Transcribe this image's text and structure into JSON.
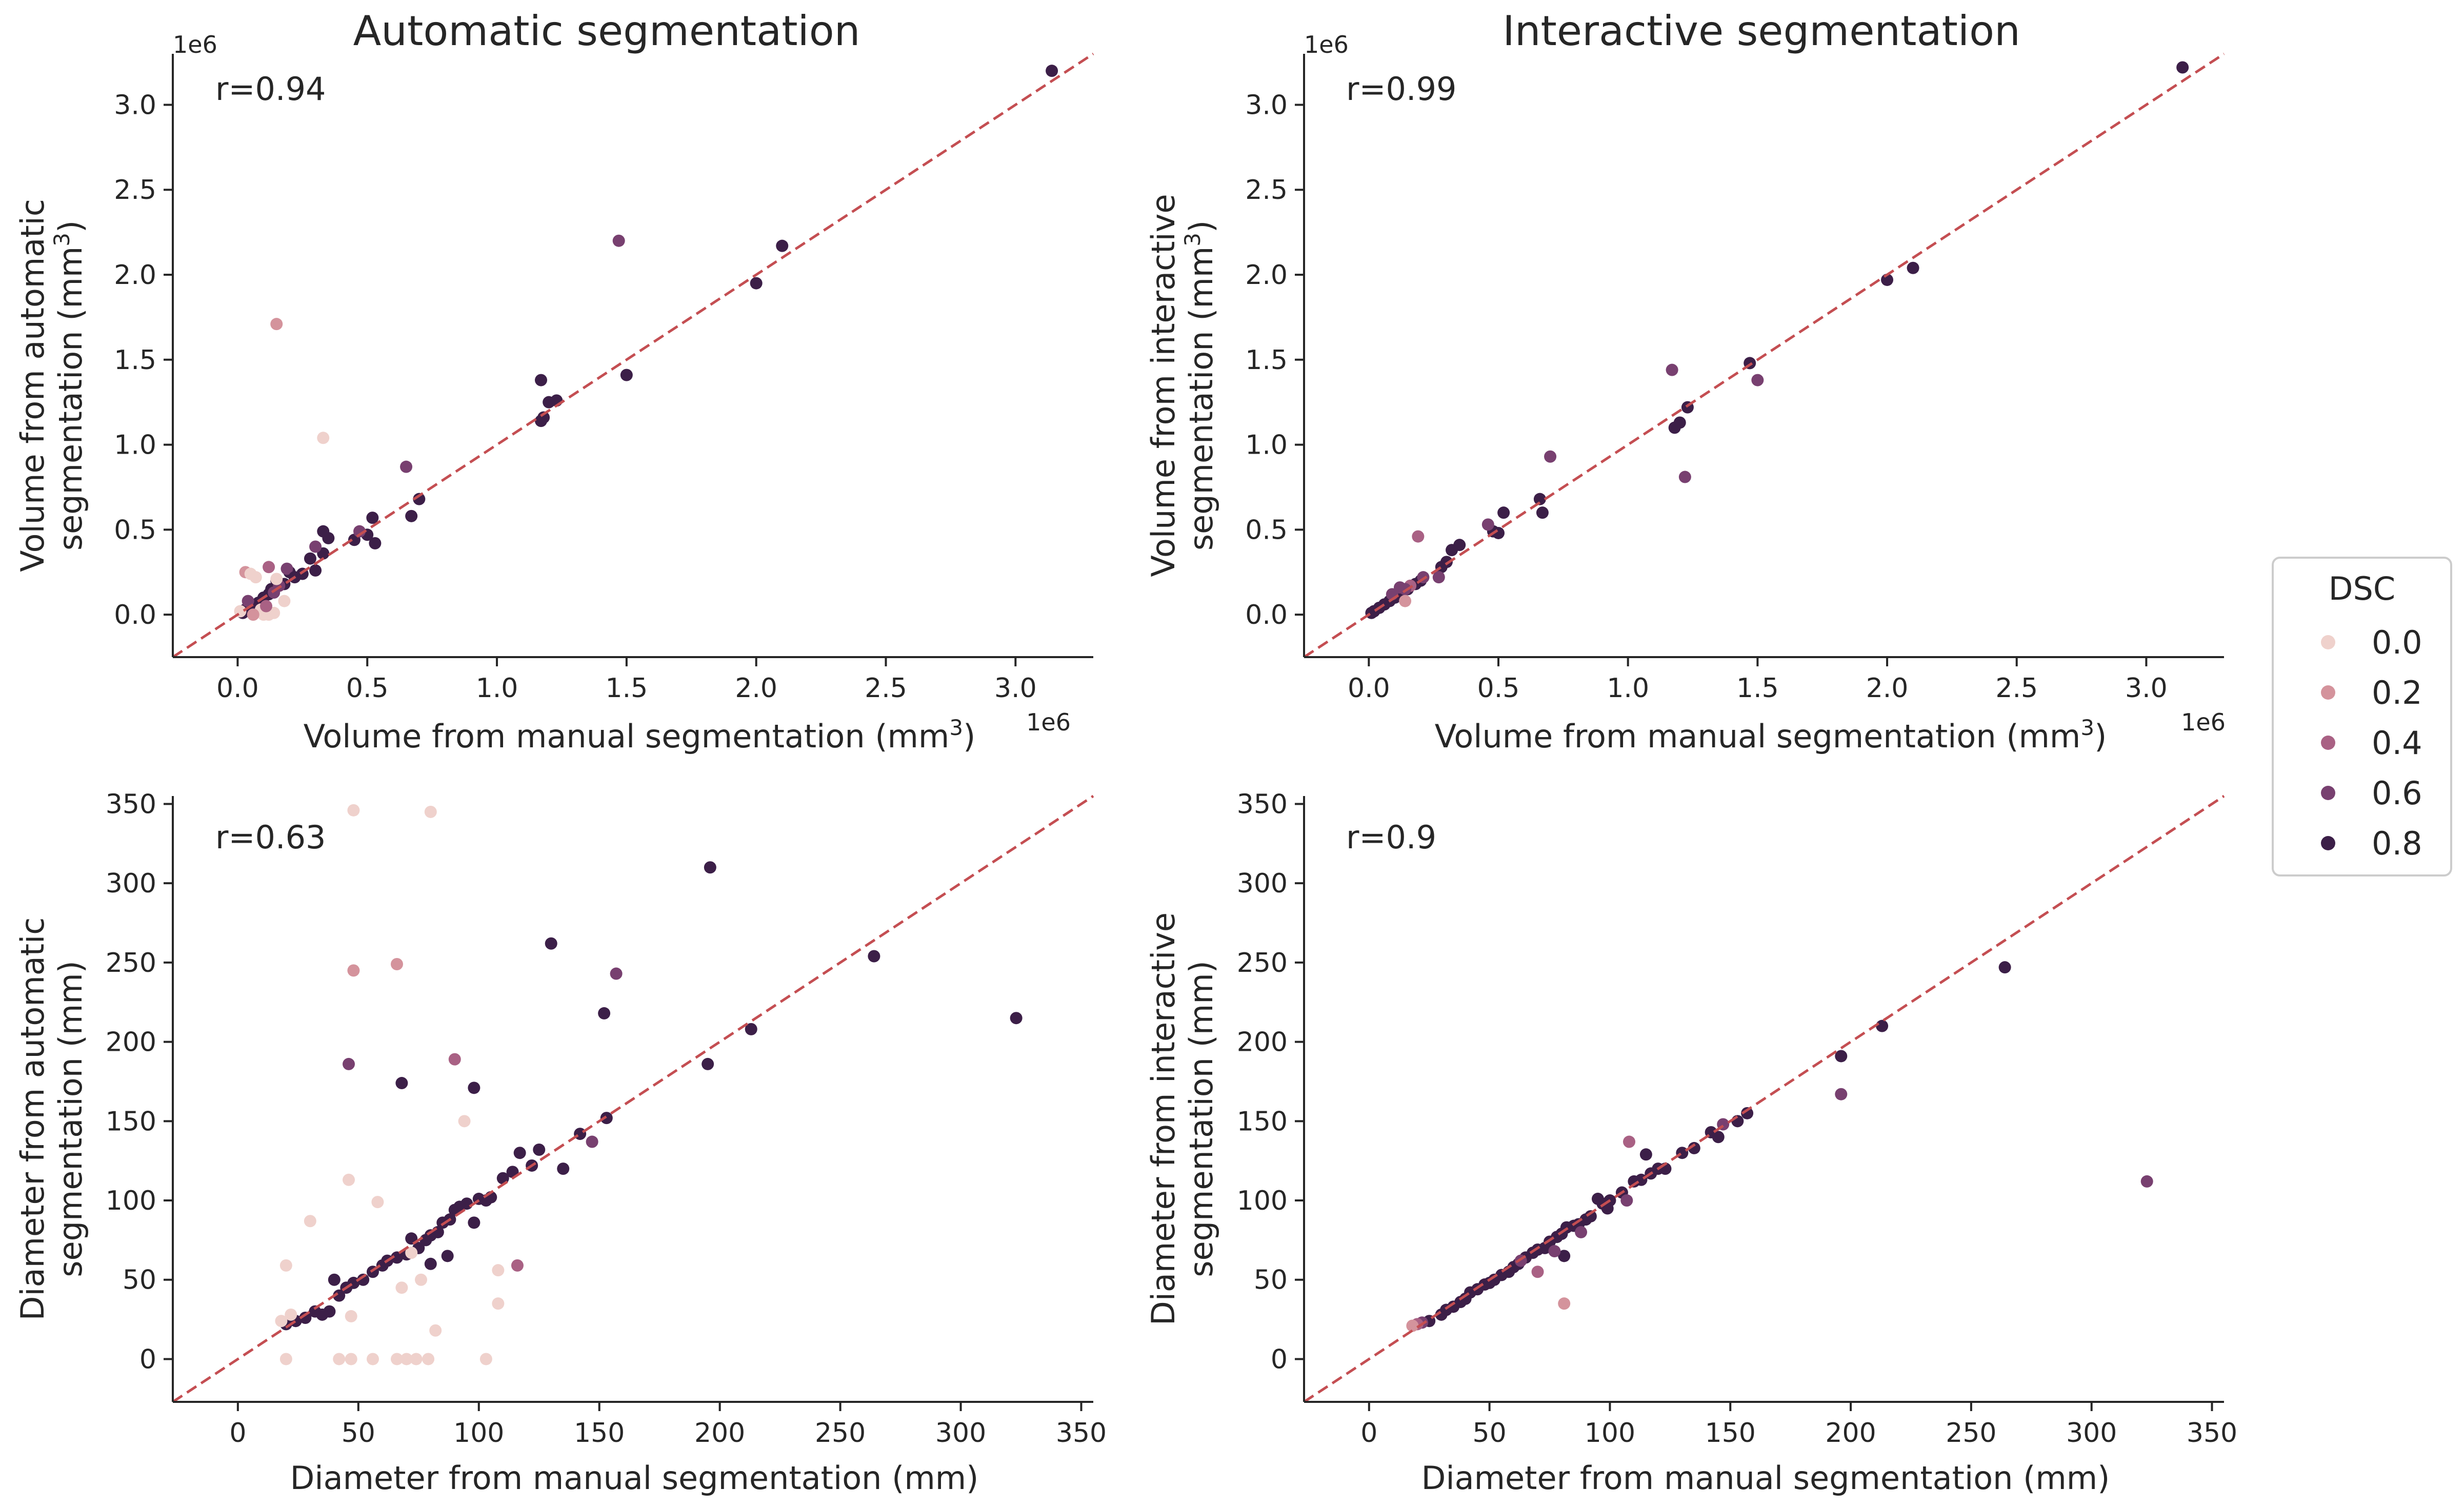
{
  "figure": {
    "legend": {
      "title": "DSC",
      "entries": [
        "0.0",
        "0.2",
        "0.4",
        "0.6",
        "0.8"
      ],
      "colors": [
        "#efd1cc",
        "#d4939c",
        "#a96184",
        "#784070",
        "#3c1f48"
      ],
      "placement": "right-center"
    },
    "identity_line_color": "#c44e52"
  },
  "chart_data": [
    {
      "type": "scatter",
      "title": "Automatic segmentation",
      "annotation": "r=0.94",
      "xlabel": "Volume from manual segmentation (mm",
      "xlabel_sup": "3",
      "xlabel_end": ")",
      "ylabel_line1": "Volume from automatic",
      "ylabel_line2": "segmentation (mm",
      "ylabel_sup": "3",
      "ylabel_end": ")",
      "x_offset_label": "1e6",
      "y_offset_label": "1e6",
      "xlim": [
        -0.25,
        3.3
      ],
      "ylim": [
        -0.25,
        3.3
      ],
      "xticks": [
        0.0,
        0.5,
        1.0,
        1.5,
        2.0,
        2.5,
        3.0
      ],
      "yticks": [
        0.0,
        0.5,
        1.0,
        1.5,
        2.0,
        2.5,
        3.0
      ],
      "xtick_labels": [
        "0.0",
        "0.5",
        "1.0",
        "1.5",
        "2.0",
        "2.5",
        "3.0"
      ],
      "ytick_labels": [
        "0.0",
        "0.5",
        "1.0",
        "1.5",
        "2.0",
        "2.5",
        "3.0"
      ],
      "points": [
        [
          3.14,
          3.2,
          4
        ],
        [
          2.1,
          2.17,
          4
        ],
        [
          2.0,
          1.95,
          4
        ],
        [
          1.47,
          2.2,
          3
        ],
        [
          1.5,
          1.41,
          4
        ],
        [
          1.23,
          1.26,
          4
        ],
        [
          1.2,
          1.25,
          4
        ],
        [
          1.17,
          1.38,
          4
        ],
        [
          1.17,
          1.14,
          4
        ],
        [
          1.18,
          1.16,
          4
        ],
        [
          0.65,
          0.87,
          3
        ],
        [
          0.7,
          0.68,
          4
        ],
        [
          0.67,
          0.58,
          4
        ],
        [
          0.52,
          0.57,
          4
        ],
        [
          0.5,
          0.47,
          4
        ],
        [
          0.45,
          0.44,
          4
        ],
        [
          0.53,
          0.42,
          4
        ],
        [
          0.47,
          0.49,
          3
        ],
        [
          0.33,
          0.49,
          4
        ],
        [
          0.35,
          0.45,
          4
        ],
        [
          0.33,
          0.36,
          4
        ],
        [
          0.3,
          0.4,
          3
        ],
        [
          0.28,
          0.33,
          4
        ],
        [
          0.3,
          0.26,
          4
        ],
        [
          0.25,
          0.24,
          4
        ],
        [
          0.2,
          0.25,
          4
        ],
        [
          0.18,
          0.18,
          4
        ],
        [
          0.15,
          0.2,
          4
        ],
        [
          0.13,
          0.15,
          4
        ],
        [
          0.12,
          0.12,
          4
        ],
        [
          0.1,
          0.1,
          4
        ],
        [
          0.08,
          0.07,
          4
        ],
        [
          0.05,
          0.05,
          4
        ],
        [
          0.03,
          0.03,
          4
        ],
        [
          0.02,
          0.01,
          4
        ],
        [
          0.06,
          0.04,
          4
        ],
        [
          0.16,
          0.17,
          3
        ],
        [
          0.19,
          0.27,
          3
        ],
        [
          0.12,
          0.28,
          2
        ],
        [
          0.14,
          0.13,
          3
        ],
        [
          0.22,
          0.22,
          4
        ],
        [
          0.04,
          0.08,
          3
        ],
        [
          0.15,
          1.71,
          1
        ],
        [
          0.33,
          1.04,
          0
        ],
        [
          0.03,
          0.25,
          1
        ],
        [
          0.05,
          0.24,
          0
        ],
        [
          0.07,
          0.22,
          0
        ],
        [
          0.15,
          0.21,
          0
        ],
        [
          0.18,
          0.08,
          0
        ],
        [
          0.12,
          0.0,
          0
        ],
        [
          0.1,
          0.0,
          0
        ],
        [
          0.14,
          0.01,
          0
        ],
        [
          0.09,
          0.03,
          0
        ],
        [
          0.01,
          0.02,
          0
        ],
        [
          0.06,
          0.0,
          1
        ],
        [
          0.11,
          0.05,
          2
        ]
      ]
    },
    {
      "type": "scatter",
      "title": "Interactive segmentation",
      "annotation": "r=0.99",
      "xlabel": "Volume from manual segmentation (mm",
      "xlabel_sup": "3",
      "xlabel_end": ")",
      "ylabel_line1": "Volume from interactive",
      "ylabel_line2": "segmentation (mm",
      "ylabel_sup": "3",
      "ylabel_end": ")",
      "x_offset_label": "1e6",
      "y_offset_label": "1e6",
      "xlim": [
        -0.25,
        3.3
      ],
      "ylim": [
        -0.25,
        3.3
      ],
      "xticks": [
        0.0,
        0.5,
        1.0,
        1.5,
        2.0,
        2.5,
        3.0
      ],
      "yticks": [
        0.0,
        0.5,
        1.0,
        1.5,
        2.0,
        2.5,
        3.0
      ],
      "xtick_labels": [
        "0.0",
        "0.5",
        "1.0",
        "1.5",
        "2.0",
        "2.5",
        "3.0"
      ],
      "ytick_labels": [
        "0.0",
        "0.5",
        "1.0",
        "1.5",
        "2.0",
        "2.5",
        "3.0"
      ],
      "points": [
        [
          3.14,
          3.22,
          4
        ],
        [
          2.1,
          2.04,
          4
        ],
        [
          2.0,
          1.97,
          4
        ],
        [
          1.47,
          1.48,
          4
        ],
        [
          1.5,
          1.38,
          3
        ],
        [
          1.23,
          1.22,
          4
        ],
        [
          1.17,
          1.44,
          3
        ],
        [
          1.18,
          1.1,
          4
        ],
        [
          1.2,
          1.13,
          4
        ],
        [
          1.22,
          0.81,
          3
        ],
        [
          0.7,
          0.93,
          3
        ],
        [
          0.66,
          0.68,
          4
        ],
        [
          0.67,
          0.6,
          4
        ],
        [
          0.52,
          0.6,
          4
        ],
        [
          0.48,
          0.49,
          4
        ],
        [
          0.5,
          0.48,
          4
        ],
        [
          0.46,
          0.53,
          3
        ],
        [
          0.35,
          0.41,
          4
        ],
        [
          0.32,
          0.38,
          4
        ],
        [
          0.3,
          0.31,
          4
        ],
        [
          0.28,
          0.28,
          4
        ],
        [
          0.27,
          0.22,
          3
        ],
        [
          0.2,
          0.2,
          4
        ],
        [
          0.18,
          0.18,
          4
        ],
        [
          0.15,
          0.15,
          4
        ],
        [
          0.12,
          0.13,
          4
        ],
        [
          0.1,
          0.1,
          4
        ],
        [
          0.08,
          0.08,
          4
        ],
        [
          0.06,
          0.06,
          4
        ],
        [
          0.04,
          0.04,
          4
        ],
        [
          0.02,
          0.02,
          4
        ],
        [
          0.01,
          0.01,
          4
        ],
        [
          0.19,
          0.46,
          2
        ],
        [
          0.16,
          0.17,
          2
        ],
        [
          0.14,
          0.15,
          3
        ],
        [
          0.12,
          0.16,
          3
        ],
        [
          0.14,
          0.08,
          1
        ],
        [
          0.21,
          0.22,
          3
        ],
        [
          0.09,
          0.12,
          3
        ]
      ]
    },
    {
      "type": "scatter",
      "title": "",
      "annotation": "r=0.63",
      "xlabel": "Diameter from manual segmentation (mm)",
      "ylabel_line1": "Diameter from automatic",
      "ylabel_line2": "segmentation (mm)",
      "xlim": [
        -27,
        355
      ],
      "ylim": [
        -27,
        355
      ],
      "xticks": [
        0,
        50,
        100,
        150,
        200,
        250,
        300,
        350
      ],
      "yticks": [
        0,
        50,
        100,
        150,
        200,
        250,
        300,
        350
      ],
      "xtick_labels": [
        "0",
        "50",
        "100",
        "150",
        "200",
        "250",
        "300",
        "350"
      ],
      "ytick_labels": [
        "0",
        "50",
        "100",
        "150",
        "200",
        "250",
        "300",
        "350"
      ],
      "points": [
        [
          323,
          215,
          4
        ],
        [
          264,
          254,
          4
        ],
        [
          213,
          208,
          4
        ],
        [
          196,
          310,
          4
        ],
        [
          195,
          186,
          4
        ],
        [
          157,
          243,
          3
        ],
        [
          153,
          152,
          4
        ],
        [
          152,
          218,
          4
        ],
        [
          147,
          137,
          3
        ],
        [
          142,
          142,
          4
        ],
        [
          135,
          120,
          4
        ],
        [
          130,
          262,
          4
        ],
        [
          125,
          132,
          4
        ],
        [
          122,
          122,
          4
        ],
        [
          117,
          130,
          4
        ],
        [
          114,
          118,
          4
        ],
        [
          110,
          114,
          4
        ],
        [
          105,
          102,
          4
        ],
        [
          103,
          100,
          4
        ],
        [
          100,
          101,
          4
        ],
        [
          98,
          171,
          4
        ],
        [
          98,
          86,
          4
        ],
        [
          95,
          98,
          4
        ],
        [
          92,
          96,
          4
        ],
        [
          90,
          94,
          4
        ],
        [
          88,
          88,
          4
        ],
        [
          85,
          86,
          4
        ],
        [
          83,
          80,
          4
        ],
        [
          80,
          78,
          4
        ],
        [
          78,
          75,
          4
        ],
        [
          75,
          70,
          4
        ],
        [
          72,
          76,
          4
        ],
        [
          70,
          66,
          4
        ],
        [
          68,
          174,
          4
        ],
        [
          66,
          64,
          4
        ],
        [
          62,
          62,
          4
        ],
        [
          60,
          59,
          4
        ],
        [
          56,
          55,
          4
        ],
        [
          52,
          50,
          4
        ],
        [
          48,
          48,
          4
        ],
        [
          45,
          45,
          4
        ],
        [
          42,
          40,
          4
        ],
        [
          40,
          50,
          4
        ],
        [
          38,
          30,
          4
        ],
        [
          35,
          28,
          4
        ],
        [
          32,
          30,
          4
        ],
        [
          28,
          26,
          4
        ],
        [
          24,
          24,
          4
        ],
        [
          20,
          22,
          4
        ],
        [
          46,
          186,
          3
        ],
        [
          90,
          189,
          2
        ],
        [
          116,
          59,
          2
        ],
        [
          87,
          65,
          4
        ],
        [
          80,
          60,
          4
        ],
        [
          48,
          346,
          0
        ],
        [
          80,
          345,
          0
        ],
        [
          66,
          249,
          1
        ],
        [
          48,
          245,
          1
        ],
        [
          94,
          150,
          0
        ],
        [
          46,
          113,
          0
        ],
        [
          58,
          99,
          0
        ],
        [
          30,
          87,
          0
        ],
        [
          20,
          59,
          0
        ],
        [
          108,
          56,
          0
        ],
        [
          76,
          50,
          0
        ],
        [
          68,
          45,
          0
        ],
        [
          108,
          35,
          0
        ],
        [
          22,
          28,
          0
        ],
        [
          18,
          24,
          0
        ],
        [
          47,
          27,
          0
        ],
        [
          82,
          18,
          0
        ],
        [
          20,
          0,
          0
        ],
        [
          42,
          0,
          0
        ],
        [
          47,
          0,
          0
        ],
        [
          56,
          0,
          0
        ],
        [
          66,
          0,
          0
        ],
        [
          70,
          0,
          0
        ],
        [
          74,
          0,
          0
        ],
        [
          79,
          0,
          0
        ],
        [
          103,
          0,
          0
        ],
        [
          72,
          67,
          0
        ]
      ]
    },
    {
      "type": "scatter",
      "title": "",
      "annotation": "r=0.9",
      "xlabel": "Diameter from manual segmentation (mm)",
      "ylabel_line1": "Diameter from interactive",
      "ylabel_line2": "segmentation (mm)",
      "xlim": [
        -27,
        355
      ],
      "ylim": [
        -27,
        355
      ],
      "xticks": [
        0,
        50,
        100,
        150,
        200,
        250,
        300,
        350
      ],
      "yticks": [
        0,
        50,
        100,
        150,
        200,
        250,
        300,
        350
      ],
      "xtick_labels": [
        "0",
        "50",
        "100",
        "150",
        "200",
        "250",
        "300",
        "350"
      ],
      "ytick_labels": [
        "0",
        "50",
        "100",
        "150",
        "200",
        "250",
        "300",
        "350"
      ],
      "points": [
        [
          323,
          112,
          3
        ],
        [
          264,
          247,
          4
        ],
        [
          213,
          210,
          4
        ],
        [
          196,
          191,
          4
        ],
        [
          196,
          167,
          3
        ],
        [
          157,
          155,
          4
        ],
        [
          153,
          150,
          4
        ],
        [
          147,
          148,
          3
        ],
        [
          142,
          143,
          4
        ],
        [
          135,
          133,
          4
        ],
        [
          130,
          130,
          4
        ],
        [
          123,
          120,
          4
        ],
        [
          117,
          117,
          4
        ],
        [
          115,
          129,
          4
        ],
        [
          113,
          113,
          4
        ],
        [
          110,
          112,
          4
        ],
        [
          108,
          137,
          2
        ],
        [
          105,
          105,
          4
        ],
        [
          100,
          100,
          4
        ],
        [
          97,
          98,
          4
        ],
        [
          95,
          101,
          4
        ],
        [
          92,
          90,
          4
        ],
        [
          90,
          88,
          4
        ],
        [
          87,
          85,
          4
        ],
        [
          85,
          84,
          4
        ],
        [
          82,
          83,
          4
        ],
        [
          80,
          79,
          4
        ],
        [
          78,
          77,
          4
        ],
        [
          75,
          74,
          4
        ],
        [
          73,
          70,
          4
        ],
        [
          70,
          69,
          4
        ],
        [
          68,
          67,
          4
        ],
        [
          65,
          64,
          4
        ],
        [
          62,
          60,
          4
        ],
        [
          60,
          58,
          4
        ],
        [
          58,
          55,
          4
        ],
        [
          55,
          53,
          4
        ],
        [
          52,
          50,
          4
        ],
        [
          50,
          48,
          4
        ],
        [
          48,
          47,
          4
        ],
        [
          45,
          44,
          4
        ],
        [
          42,
          42,
          4
        ],
        [
          40,
          38,
          4
        ],
        [
          38,
          36,
          4
        ],
        [
          35,
          33,
          4
        ],
        [
          32,
          31,
          4
        ],
        [
          30,
          28,
          4
        ],
        [
          25,
          24,
          4
        ],
        [
          22,
          23,
          3
        ],
        [
          20,
          22,
          2
        ],
        [
          18,
          21,
          1
        ],
        [
          81,
          35,
          1
        ],
        [
          70,
          55,
          2
        ],
        [
          107,
          100,
          3
        ],
        [
          88,
          80,
          3
        ],
        [
          81,
          65,
          4
        ],
        [
          99,
          95,
          4
        ],
        [
          120,
          120,
          4
        ],
        [
          77,
          68,
          3
        ],
        [
          63,
          62,
          3
        ],
        [
          145,
          140,
          4
        ]
      ]
    }
  ]
}
